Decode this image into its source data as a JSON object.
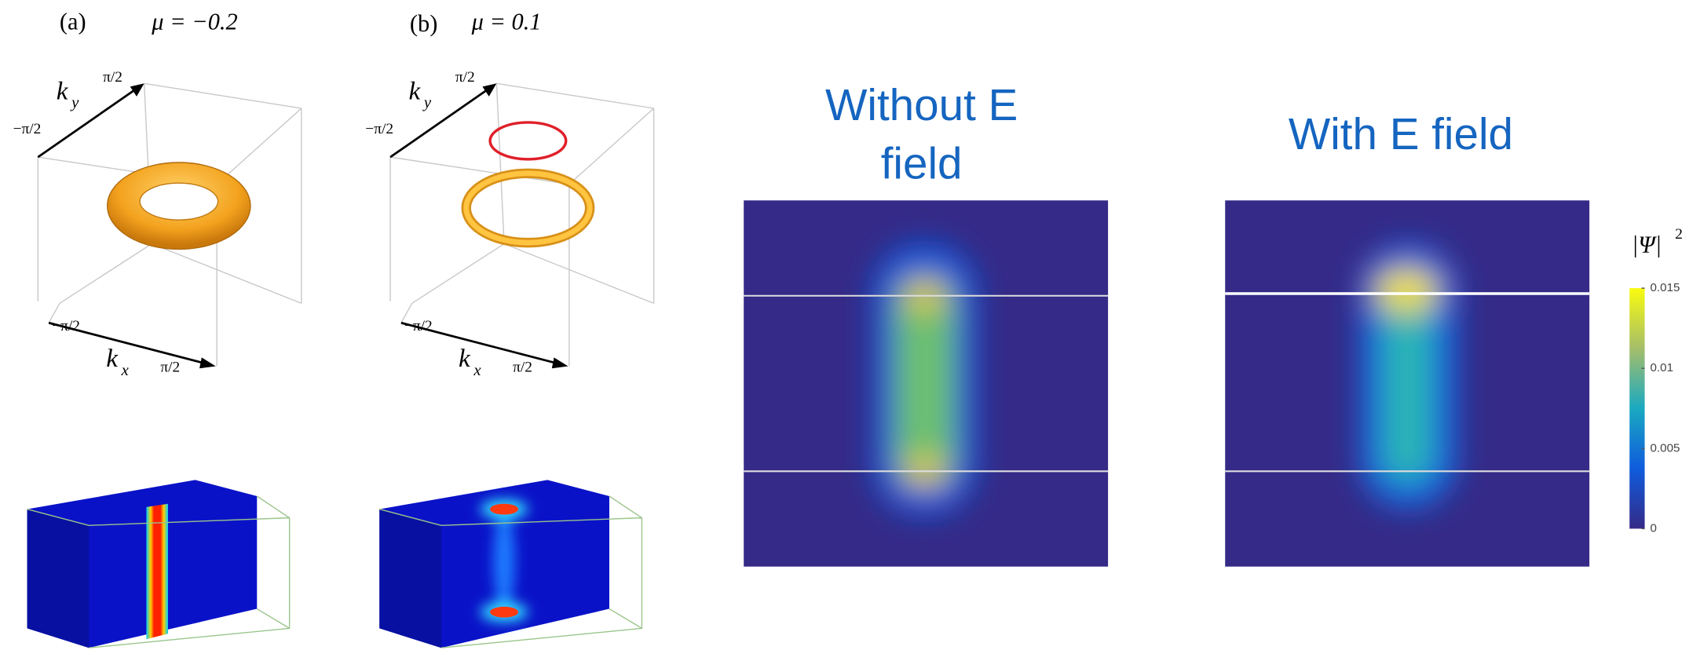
{
  "panels": [
    {
      "label": "(a)",
      "mu": "μ = −0.2",
      "ky": "k",
      "ky_sub": "y",
      "kx": "k",
      "kx_sub": "x",
      "pos_tick": "π/2",
      "neg_tick": "−π/2"
    },
    {
      "label": "(b)",
      "mu": "μ = 0.1",
      "ky": "k",
      "ky_sub": "y",
      "kx": "k",
      "kx_sub": "x",
      "pos_tick": "π/2",
      "neg_tick": "−π/2"
    }
  ],
  "maps": [
    {
      "title_line1": "Without E",
      "title_line2": "field"
    },
    {
      "title_line1": "With E field"
    }
  ],
  "colorbar": {
    "label": "|Ψ|",
    "label_sup": "2",
    "lim": [
      0,
      0.015
    ],
    "ticks": [
      0.015,
      0.01,
      0.005,
      0
    ]
  }
}
